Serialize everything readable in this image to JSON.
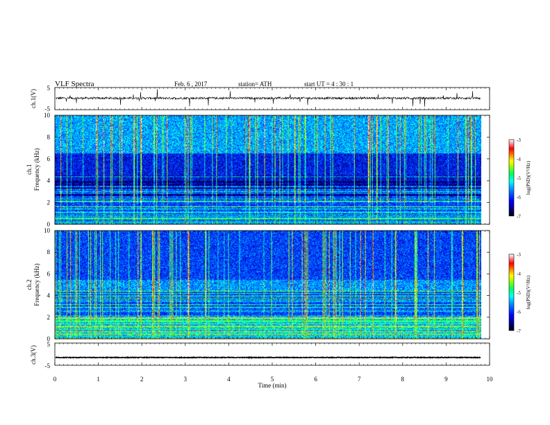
{
  "header": {
    "title": "VLF  Spectra",
    "date": "Feb. 6   , 2017",
    "station": "station= ATH",
    "start": "start  UT  =   4  : 30 : 1"
  },
  "colors": {
    "trace": "#000000",
    "colormap": [
      "#000000",
      "#00007a",
      "#0000ff",
      "#0080ff",
      "#00ffff",
      "#00ff80",
      "#80ff00",
      "#ffff00",
      "#ff8000",
      "#ff0000",
      "#ffffff"
    ]
  },
  "chart_data": [
    {
      "type": "line",
      "ylabel": "ch.1(V)",
      "ylim": [
        -5,
        5
      ],
      "ytick_labels": [
        "5",
        "-5"
      ],
      "xlim": [
        0,
        10
      ],
      "description_series": {
        "baseline": 0.2,
        "noise": 0.5,
        "duration_min": 9.8
      }
    },
    {
      "type": "heatmap",
      "ylabel": "ch.1\nFrequency (kHz)",
      "ylim": [
        0,
        10
      ],
      "ytick_labels": [
        "0",
        "2",
        "4",
        "6",
        "8",
        "10"
      ],
      "xlim": [
        0,
        10
      ],
      "data_end_min": 9.8,
      "colorbar": {
        "label": "log(PSD)(V²/Hz)",
        "range": [
          -7,
          -3
        ],
        "tick_labels": [
          "-3",
          "-4",
          "-5",
          "-6",
          "-7"
        ]
      }
    },
    {
      "type": "heatmap",
      "ylabel": "ch.2\nFrequency (kHz)",
      "ylim": [
        0,
        10
      ],
      "ytick_labels": [
        "0",
        "2",
        "4",
        "6",
        "8",
        "10"
      ],
      "xlim": [
        0,
        10
      ],
      "data_end_min": 9.8,
      "colorbar": {
        "label": "log(PSD)(V²/Hz)",
        "range": [
          -7,
          -3
        ],
        "tick_labels": [
          "-3",
          "-4",
          "-5",
          "-6",
          "-7"
        ]
      }
    },
    {
      "type": "line",
      "ylabel": "ch.3(V)",
      "ylim": [
        -5,
        5
      ],
      "ytick_labels": [
        "5",
        "-5"
      ],
      "xlim": [
        0,
        10
      ],
      "xlabel": "Time  (min)",
      "xtick_labels": [
        "0",
        "1",
        "2",
        "3",
        "4",
        "5",
        "6",
        "7",
        "8",
        "9",
        "10"
      ],
      "description_series": {
        "baseline": -1.5,
        "noise": 0.15,
        "duration_min": 9.8
      }
    }
  ]
}
